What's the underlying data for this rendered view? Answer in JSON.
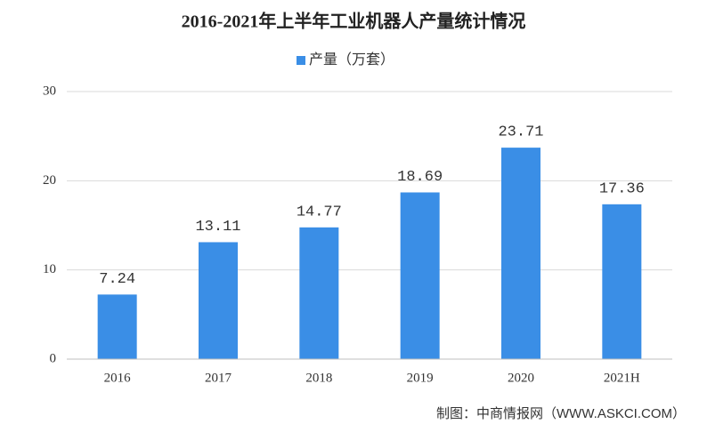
{
  "chart_data": {
    "type": "bar",
    "title": "2016-2021年上半年工业机器人产量统计情况",
    "categories": [
      "2016",
      "2017",
      "2018",
      "2019",
      "2020",
      "2021H"
    ],
    "series": [
      {
        "name": "产量（万套）",
        "color": "#3a8ee6",
        "values": [
          7.24,
          13.11,
          14.77,
          18.69,
          23.71,
          17.36
        ]
      }
    ],
    "ylim": [
      0,
      30
    ],
    "yticks": [
      0,
      10,
      20,
      30
    ],
    "grid": true,
    "source": "制图：中商情报网（WWW.ASKCI.COM）"
  }
}
